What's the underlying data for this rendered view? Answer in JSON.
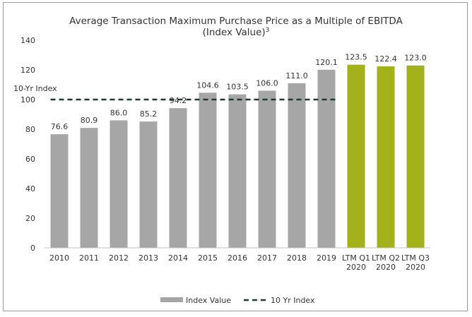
{
  "chart_data": {
    "type": "bar",
    "title": "Average Transaction Maximum Purchase Price as a Multiple of EBITDA",
    "subtitle": "(Index Value)",
    "subtitle_superscript": "3",
    "categories": [
      [
        "2010"
      ],
      [
        "2011"
      ],
      [
        "2012"
      ],
      [
        "2013"
      ],
      [
        "2014"
      ],
      [
        "2015"
      ],
      [
        "2016"
      ],
      [
        "2017"
      ],
      [
        "2018"
      ],
      [
        "2019"
      ],
      [
        "LTM Q1",
        "2020"
      ],
      [
        "LTM Q2",
        "2020"
      ],
      [
        "LTM Q3",
        "2020"
      ]
    ],
    "series": [
      {
        "name": "Index Value",
        "values": [
          76.6,
          80.9,
          86.0,
          85.2,
          94.2,
          104.6,
          103.5,
          106.0,
          111.0,
          120.1,
          123.5,
          122.4,
          123.0
        ],
        "labels": [
          "76.6",
          "80.9",
          "86.0",
          "85.2",
          "94.2",
          "104.6",
          "103.5",
          "106.0",
          "111.0",
          "120.1",
          "123.5",
          "122.4",
          "123.0"
        ],
        "colors": [
          "#a6a6a6",
          "#a6a6a6",
          "#a6a6a6",
          "#a6a6a6",
          "#a6a6a6",
          "#a6a6a6",
          "#a6a6a6",
          "#a6a6a6",
          "#a6a6a6",
          "#a6a6a6",
          "#a3b21a",
          "#a3b21a",
          "#a3b21a"
        ]
      },
      {
        "name": "10 Yr Index",
        "type": "line",
        "style": "dashed",
        "value": 100,
        "span": [
          "2010",
          "2019"
        ],
        "color": "#1f3b35"
      }
    ],
    "annotation": "10-Yr Index",
    "ylim": [
      0,
      140
    ],
    "yticks": [
      0,
      20,
      40,
      60,
      80,
      100,
      120,
      140
    ],
    "grid": false,
    "legend_position": "bottom"
  }
}
